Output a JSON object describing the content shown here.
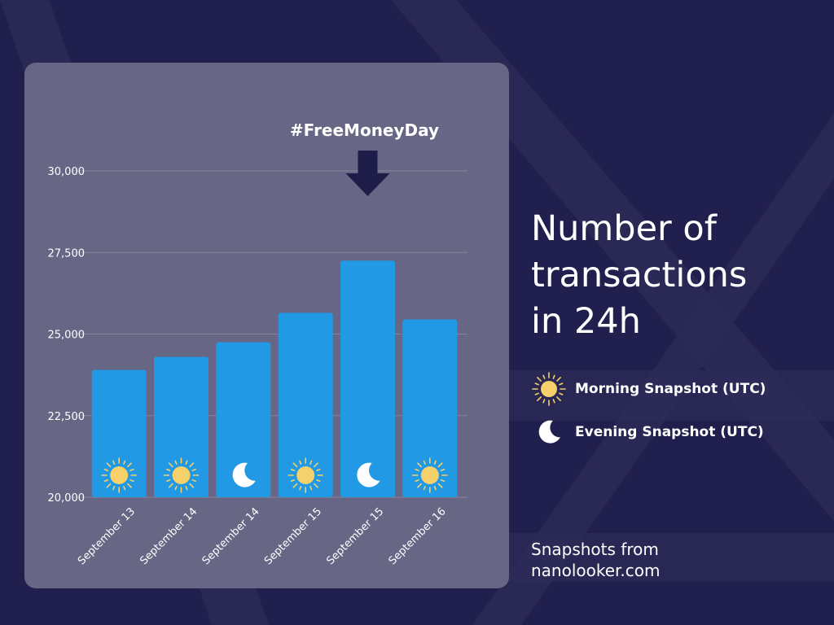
{
  "title": "Number of transactions in 24h",
  "title_lines": [
    "Number of",
    "transactions",
    "in 24h"
  ],
  "annotation": {
    "text": "#FreeMoneyDay",
    "target_category_index": 4,
    "color": "#1e1d4a"
  },
  "legend": [
    {
      "key": "morning",
      "label": "Morning Snapshot (UTC)",
      "icon": "sun-icon"
    },
    {
      "key": "evening",
      "label": "Evening Snapshot (UTC)",
      "icon": "moon-icon"
    }
  ],
  "source": {
    "line1": "Snapshots from",
    "line2": "nanolooker.com"
  },
  "colors": {
    "background": "#211f4e",
    "panel": "#676685",
    "bar": "#2299e5",
    "gridline": "#8584a0",
    "sun": "#f5d06b",
    "moon": "#ffffff",
    "text": "#ffffff"
  },
  "chart_data": {
    "type": "bar",
    "categories": [
      "September 13",
      "September 14",
      "September 14",
      "September 15",
      "September 15",
      "September 16"
    ],
    "values": [
      23900,
      24300,
      24750,
      25650,
      27250,
      25450
    ],
    "snapshot": [
      "morning",
      "morning",
      "evening",
      "morning",
      "evening",
      "morning"
    ],
    "ylim": [
      20000,
      30000
    ],
    "yticks": [
      20000,
      22500,
      25000,
      27500,
      30000
    ],
    "ytick_labels": [
      "20,000",
      "22,500",
      "25,000",
      "27,500",
      "30,000"
    ],
    "xlabel": "",
    "ylabel": "",
    "grid": true,
    "legend_position": "right"
  }
}
